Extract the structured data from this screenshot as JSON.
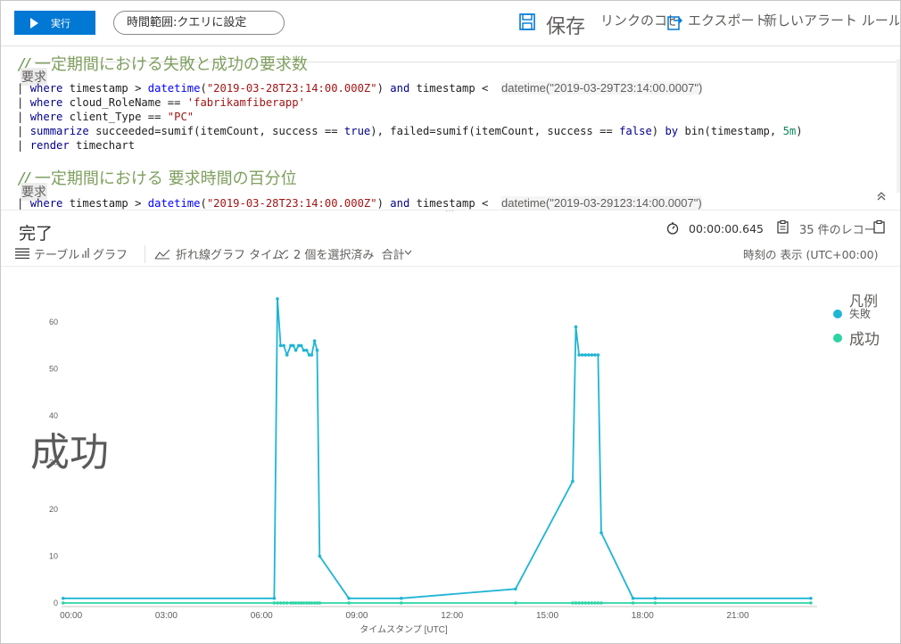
{
  "toolbar": {
    "run_label": "実行",
    "time_range": "時間範囲:クエリに設定",
    "save_label": "保存",
    "link_label": "リンクのコピー",
    "export_label": "エクスポート",
    "alert_label": "新しいアラート ルール",
    "icons": [
      "play-icon",
      "save-icon",
      "export-icon"
    ]
  },
  "editor": {
    "comment1": "一定期間における失敗と成功の要求数",
    "request1": "要求",
    "line1_kw": "where",
    "line1_a": " timestamp > ",
    "line1_fn": "datetime",
    "line1_str": "\"2019-03-28T23:14:00.000Z\"",
    "line1_and": "and",
    "line1_b": " timestamp < ",
    "line1_ghost": "datetime(\"2019-03-29T23:14:00.0007\")",
    "line2_kw": "where",
    "line2_a": " cloud_RoleName == ",
    "line2_str": "'fabrikamfiberapp'",
    "line3_kw": "where",
    "line3_a": " client_Type == ",
    "line3_str": "\"PC\"",
    "line4_kw": "summarize",
    "line4_a": " succeeded=sumif(itemCount, success == ",
    "line4_true": "true",
    "line4_b": "), failed=sumif(itemCount, success == ",
    "line4_false": "false",
    "line4_c": ") ",
    "line4_by": "by",
    "line4_d": " bin(timestamp, ",
    "line4_num": "5m",
    "line4_e": ")",
    "line5_kw": "render",
    "line5_a": " timechart",
    "comment2": "一定期間における 要求時間の百分位",
    "request2": "要求",
    "line6_ghost": "datetime(\"2019-03-29123:14:00.0007\")"
  },
  "results": {
    "status": "完了",
    "duration": "00:00:00.645",
    "records": "35 件のレコード",
    "tab_table": "テーブル",
    "tab_chart": "グラフ",
    "chart_type": "折れ線グラフ タイムスタンプ",
    "selected": "2 個を選択済み",
    "aggregate": "合計",
    "timezone": "時刻の 表示 (UTC+00:00)"
  },
  "chart_overlay_label": "成功",
  "chart_data": {
    "type": "line",
    "xlabel": "タイムスタンプ [UTC]",
    "ylabel": "",
    "x_ticks": [
      "00:00",
      "03:00",
      "06:00",
      "09:00",
      "12:00",
      "15:00",
      "18:00",
      "21:00"
    ],
    "y_ticks": [
      "0",
      "10",
      "20",
      "30",
      "40",
      "50",
      "60"
    ],
    "xlim": [
      -0.3,
      23.5
    ],
    "ylim": [
      0,
      65
    ],
    "legend_title": "凡例",
    "legend_position": "top-right",
    "series": [
      {
        "name": "失敗",
        "color": "#1fb5d5",
        "points": [
          [
            -0.25,
            1
          ],
          [
            6.4,
            1
          ],
          [
            6.5,
            65
          ],
          [
            6.6,
            55
          ],
          [
            6.7,
            55
          ],
          [
            6.8,
            53
          ],
          [
            6.92,
            55
          ],
          [
            7.0,
            55
          ],
          [
            7.08,
            54
          ],
          [
            7.17,
            55
          ],
          [
            7.25,
            55
          ],
          [
            7.33,
            54
          ],
          [
            7.42,
            54
          ],
          [
            7.5,
            53
          ],
          [
            7.58,
            53
          ],
          [
            7.67,
            56
          ],
          [
            7.75,
            54
          ],
          [
            7.83,
            10
          ],
          [
            8.75,
            1
          ],
          [
            10.4,
            1
          ],
          [
            14.0,
            3
          ],
          [
            15.8,
            26
          ],
          [
            15.9,
            59
          ],
          [
            16.0,
            53
          ],
          [
            16.1,
            53
          ],
          [
            16.2,
            53
          ],
          [
            16.3,
            53
          ],
          [
            16.4,
            53
          ],
          [
            16.5,
            53
          ],
          [
            16.6,
            53
          ],
          [
            16.7,
            15
          ],
          [
            17.7,
            1
          ],
          [
            18.4,
            1
          ],
          [
            23.3,
            1
          ]
        ]
      },
      {
        "name": "成功",
        "color": "#2bd4a4",
        "points": [
          [
            -0.25,
            0
          ],
          [
            6.4,
            0
          ],
          [
            6.5,
            0
          ],
          [
            6.6,
            0
          ],
          [
            6.7,
            0
          ],
          [
            6.8,
            0
          ],
          [
            6.92,
            0
          ],
          [
            7.0,
            0
          ],
          [
            7.08,
            0
          ],
          [
            7.17,
            0
          ],
          [
            7.25,
            0
          ],
          [
            7.33,
            0
          ],
          [
            7.42,
            0
          ],
          [
            7.5,
            0
          ],
          [
            7.58,
            0
          ],
          [
            7.67,
            0
          ],
          [
            7.75,
            0
          ],
          [
            7.83,
            0
          ],
          [
            8.75,
            0
          ],
          [
            10.4,
            0
          ],
          [
            14.0,
            0
          ],
          [
            15.8,
            0
          ],
          [
            15.9,
            0
          ],
          [
            16.0,
            0
          ],
          [
            16.1,
            0
          ],
          [
            16.2,
            0
          ],
          [
            16.3,
            0
          ],
          [
            16.4,
            0
          ],
          [
            16.5,
            0
          ],
          [
            16.6,
            0
          ],
          [
            16.7,
            0
          ],
          [
            17.7,
            0
          ],
          [
            18.4,
            0
          ],
          [
            23.3,
            0
          ]
        ]
      }
    ]
  }
}
